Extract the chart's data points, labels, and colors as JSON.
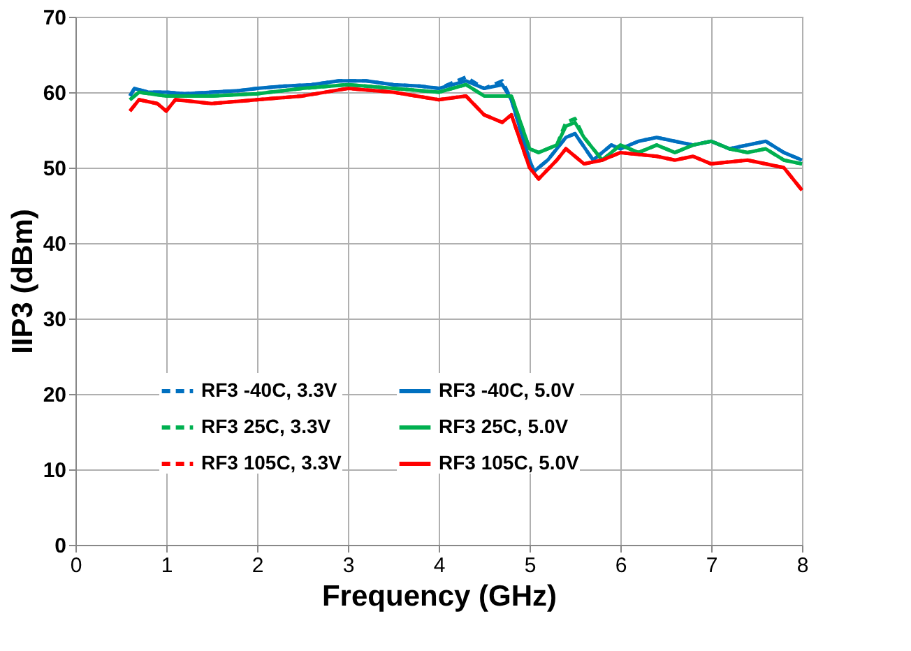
{
  "chart_data": {
    "type": "line",
    "xlabel": "Frequency (GHz)",
    "ylabel": "IIP3 (dBm)",
    "xlim": [
      0,
      8
    ],
    "ylim": [
      0,
      70
    ],
    "xticks": [
      0,
      1,
      2,
      3,
      4,
      5,
      6,
      7,
      8
    ],
    "yticks": [
      0,
      10,
      20,
      30,
      40,
      50,
      60,
      70
    ],
    "grid": true,
    "legend": "bottom",
    "marker": "none",
    "series": [
      {
        "name": "RF3 -40C, 3.3V",
        "color": "#0070c0",
        "line_style": "dashed",
        "x": [
          0.6,
          0.65,
          0.8,
          1,
          1.2,
          1.5,
          1.8,
          2,
          2.3,
          2.6,
          2.9,
          3.2,
          3.5,
          3.8,
          4,
          4.3,
          4.5,
          4.7,
          4.8,
          4.9,
          5,
          5.05,
          5.2,
          5.4,
          5.5,
          5.7,
          5.9,
          6,
          6.2,
          6.4,
          6.6,
          6.8,
          7,
          7.2,
          7.4,
          7.6,
          7.8,
          8
        ],
        "values": [
          59.5,
          60.5,
          60,
          60,
          59.8,
          60,
          60.2,
          60.5,
          60.8,
          61,
          61.5,
          61.5,
          61,
          60.8,
          60.5,
          62,
          60.5,
          61.5,
          59,
          55,
          51,
          49.5,
          51,
          54,
          54.5,
          51,
          53,
          52.5,
          53.5,
          54,
          53.5,
          53,
          53.5,
          52.5,
          53,
          53.5,
          52,
          51
        ]
      },
      {
        "name": "RF3 -40C, 5.0V",
        "color": "#0070c0",
        "line_style": "solid",
        "x": [
          0.6,
          0.65,
          0.8,
          1,
          1.2,
          1.5,
          1.8,
          2,
          2.3,
          2.6,
          2.9,
          3.2,
          3.5,
          3.8,
          4,
          4.3,
          4.5,
          4.7,
          4.8,
          4.9,
          5,
          5.05,
          5.2,
          5.4,
          5.5,
          5.7,
          5.9,
          6,
          6.2,
          6.4,
          6.6,
          6.8,
          7,
          7.2,
          7.4,
          7.6,
          7.8,
          8
        ],
        "values": [
          59.5,
          60.5,
          60,
          60,
          59.8,
          60,
          60.2,
          60.5,
          60.8,
          61,
          61.5,
          61.5,
          61,
          60.8,
          60.5,
          61.5,
          60.5,
          61,
          59,
          55,
          51,
          49.5,
          51,
          54,
          54.5,
          51,
          53,
          52.5,
          53.5,
          54,
          53.5,
          53,
          53.5,
          52.5,
          53,
          53.5,
          52,
          51
        ]
      },
      {
        "name": "RF3 25C, 3.3V",
        "color": "#00b050",
        "line_style": "dashed",
        "x": [
          0.6,
          0.7,
          1,
          1.5,
          2,
          2.5,
          3,
          3.5,
          4,
          4.3,
          4.5,
          4.8,
          5,
          5.1,
          5.3,
          5.4,
          5.5,
          5.6,
          5.8,
          6,
          6.2,
          6.4,
          6.6,
          6.8,
          7,
          7.2,
          7.4,
          7.6,
          7.8,
          8
        ],
        "values": [
          59,
          60,
          59.5,
          59.5,
          59.8,
          60.5,
          61,
          60.5,
          60,
          61,
          59.5,
          59.5,
          52.5,
          52,
          53,
          56,
          56.5,
          54,
          51,
          53,
          52,
          53,
          52,
          53,
          53.5,
          52.5,
          52,
          52.5,
          51,
          50.5
        ]
      },
      {
        "name": "RF3 25C, 5.0V",
        "color": "#00b050",
        "line_style": "solid",
        "x": [
          0.6,
          0.7,
          1,
          1.5,
          2,
          2.5,
          3,
          3.5,
          4,
          4.3,
          4.5,
          4.8,
          5,
          5.1,
          5.3,
          5.4,
          5.5,
          5.6,
          5.8,
          6,
          6.2,
          6.4,
          6.6,
          6.8,
          7,
          7.2,
          7.4,
          7.6,
          7.8,
          8
        ],
        "values": [
          59,
          60,
          59.5,
          59.5,
          59.8,
          60.5,
          61,
          60.5,
          60,
          61,
          59.5,
          59.5,
          52.5,
          52,
          53,
          55.5,
          56,
          54,
          51,
          53,
          52,
          53,
          52,
          53,
          53.5,
          52.5,
          52,
          52.5,
          51,
          50.5
        ]
      },
      {
        "name": "RF3 105C, 3.3V",
        "color": "#ff0000",
        "line_style": "dashed",
        "x": [
          0.6,
          0.7,
          0.9,
          1,
          1.1,
          1.5,
          2,
          2.5,
          3,
          3.5,
          4,
          4.3,
          4.5,
          4.7,
          4.8,
          5,
          5.1,
          5.3,
          5.4,
          5.6,
          5.8,
          6,
          6.4,
          6.6,
          6.8,
          7,
          7.4,
          7.8,
          8
        ],
        "values": [
          57.5,
          59,
          58.5,
          57.5,
          59,
          58.5,
          59,
          59.5,
          60.5,
          60,
          59,
          59.5,
          57,
          56,
          57,
          50,
          48.5,
          51,
          52.5,
          50.5,
          51,
          52,
          51.5,
          51,
          51.5,
          50.5,
          51,
          50,
          47
        ]
      },
      {
        "name": "RF3 105C, 5.0V",
        "color": "#ff0000",
        "line_style": "solid",
        "x": [
          0.6,
          0.7,
          0.9,
          1,
          1.1,
          1.5,
          2,
          2.5,
          3,
          3.5,
          4,
          4.3,
          4.5,
          4.7,
          4.8,
          5,
          5.1,
          5.3,
          5.4,
          5.6,
          5.8,
          6,
          6.4,
          6.6,
          6.8,
          7,
          7.4,
          7.8,
          8
        ],
        "values": [
          57.5,
          59,
          58.5,
          57.5,
          59,
          58.5,
          59,
          59.5,
          60.5,
          60,
          59,
          59.5,
          57,
          56,
          57,
          50,
          48.5,
          51,
          52.5,
          50.5,
          51,
          52,
          51.5,
          51,
          51.5,
          50.5,
          51,
          50,
          47
        ]
      }
    ]
  }
}
